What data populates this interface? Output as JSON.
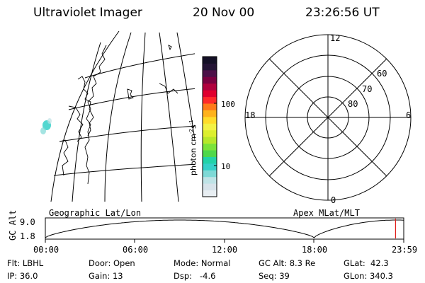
{
  "header": {
    "title": "Ultraviolet Imager",
    "date": "20 Nov 00",
    "time": "23:26:56 UT"
  },
  "map": {
    "caption": "Geographic Lat/Lon"
  },
  "colorbar": {
    "unit_main": "photon cm",
    "unit_exp1": "-2",
    "unit_s": "s",
    "unit_exp2": "-1",
    "tick_high": "100",
    "tick_low": "10",
    "colors": [
      "#e8eef2",
      "#d7e3ea",
      "#bfe3e6",
      "#7ed9d6",
      "#35d0c8",
      "#22d2a8",
      "#4fd84a",
      "#7be33a",
      "#b7e82a",
      "#dcef2e",
      "#f3f245",
      "#ffdc2a",
      "#ffb21c",
      "#ff7a1a",
      "#ff2a2a",
      "#e0002e",
      "#b0003d",
      "#7a0040",
      "#4c1048",
      "#241435",
      "#141026"
    ]
  },
  "polar": {
    "caption": "Apex MLat/MLT",
    "mlt_labels": {
      "top": "12",
      "left": "18",
      "right": "6",
      "bottom": "0"
    },
    "lat_labels": [
      "60",
      "70",
      "80"
    ]
  },
  "altitude_plot": {
    "ylabel": "GC Alt",
    "ticks": [
      "9.0",
      "1.8"
    ],
    "time_ticks": [
      "00:00",
      "06:00",
      "12:00",
      "18:00",
      "23:59"
    ],
    "marker_color": "#e0201c"
  },
  "status": {
    "filter": "Flt: LBHL",
    "ip": "IP: 36.0",
    "door": "Door: Open",
    "gain": "Gain: 13",
    "mode": "Mode: Normal",
    "dsp": "Dsp:   -4.6",
    "gc_alt": "GC Alt: 8.3 Re",
    "seq": "Seq: 39",
    "glat": "GLat:  42.3",
    "glon": "GLon: 340.3"
  }
}
